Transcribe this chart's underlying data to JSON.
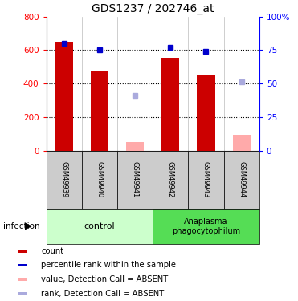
{
  "title": "GDS1237 / 202746_at",
  "samples": [
    "GSM49939",
    "GSM49940",
    "GSM49941",
    "GSM49942",
    "GSM49943",
    "GSM49944"
  ],
  "count_values": [
    650,
    475,
    null,
    555,
    455,
    null
  ],
  "count_absent_values": [
    null,
    null,
    48,
    null,
    null,
    95
  ],
  "rank_values": [
    80,
    75,
    null,
    77,
    74,
    null
  ],
  "rank_absent_values": [
    null,
    null,
    41,
    null,
    null,
    51
  ],
  "ylim_left": [
    0,
    800
  ],
  "ylim_right": [
    0,
    100
  ],
  "yticks_left": [
    0,
    200,
    400,
    600,
    800
  ],
  "yticks_right": [
    0,
    25,
    50,
    75,
    100
  ],
  "ytick_labels_left": [
    "0",
    "200",
    "400",
    "600",
    "800"
  ],
  "ytick_labels_right": [
    "0",
    "25",
    "50",
    "75",
    "100%"
  ],
  "control_label": "control",
  "infected_label": "Anaplasma\nphagocytophilum",
  "infection_label": "infection",
  "bar_color": "#cc0000",
  "bar_absent_color": "#ffaaaa",
  "rank_color": "#0000cc",
  "rank_absent_color": "#aaaadd",
  "control_bg": "#ccffcc",
  "infected_bg": "#55dd55",
  "sample_bg": "#cccccc",
  "legend_items": [
    {
      "color": "#cc0000",
      "label": "count"
    },
    {
      "color": "#0000cc",
      "label": "percentile rank within the sample"
    },
    {
      "color": "#ffaaaa",
      "label": "value, Detection Call = ABSENT"
    },
    {
      "color": "#aaaadd",
      "label": "rank, Detection Call = ABSENT"
    }
  ]
}
